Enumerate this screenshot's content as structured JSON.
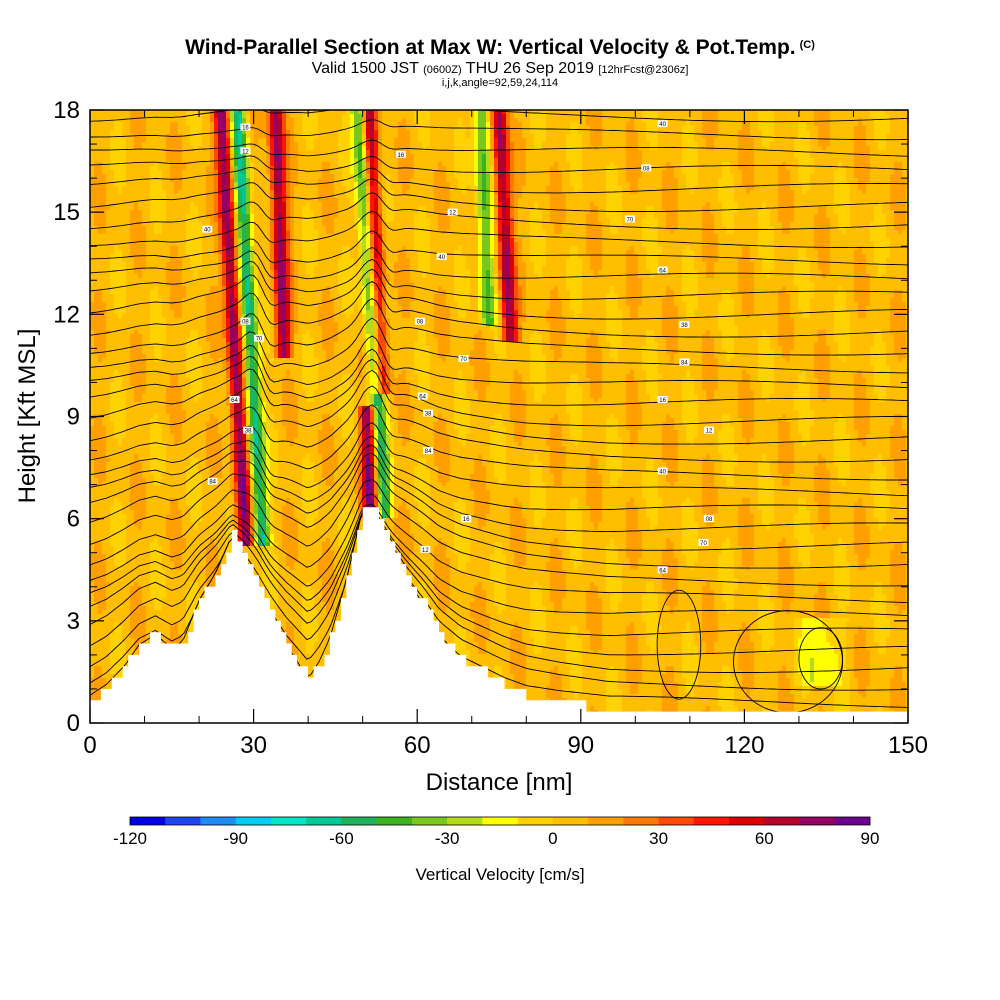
{
  "header": {
    "title": "Wind-Parallel Section at Max W: Vertical Velocity & Pot.Temp.",
    "copyright": "(C)",
    "subtitle_main": "Valid 1500 JST",
    "subtitle_utc": "(0600Z)",
    "subtitle_date": "THU 26 Sep 2019",
    "subtitle_fcst": "[12hrFcst@2306z]",
    "meta": "i,j,k,angle=92,59,24,114"
  },
  "chart_data": {
    "type": "heatmap",
    "title": "Wind-Parallel Section at Max W: Vertical Velocity & Pot.Temp.",
    "xlabel": "Distance [nm]",
    "ylabel": "Height [Kft MSL]",
    "xlim": [
      0,
      150
    ],
    "ylim": [
      0,
      18
    ],
    "x_ticks": [
      "0",
      "30",
      "60",
      "90",
      "120",
      "150"
    ],
    "y_ticks": [
      "0",
      "3",
      "6",
      "9",
      "12",
      "15",
      "18"
    ],
    "x_tick_values": [
      0,
      30,
      60,
      90,
      120,
      150
    ],
    "y_tick_values": [
      0,
      3,
      6,
      9,
      12,
      15,
      18
    ],
    "background_value": 5,
    "updrafts": [
      {
        "x": 28.5,
        "y_base": 5.5,
        "y_top": 18,
        "slope": -0.35,
        "peak": 75
      },
      {
        "x": 35.5,
        "y_base": 11,
        "y_top": 18,
        "slope": -0.2,
        "peak": 70
      },
      {
        "x": 51.5,
        "y_base": 6.3,
        "y_top": 9,
        "slope": -0.2,
        "peak": 75
      },
      {
        "x": 53.5,
        "y_base": 10,
        "y_top": 18,
        "slope": -0.3,
        "peak": 65
      },
      {
        "x": 77,
        "y_base": 11.5,
        "y_top": 18,
        "slope": -0.3,
        "peak": 70
      }
    ],
    "downdrafts": [
      {
        "x": 31.5,
        "y_base": 5.5,
        "y_top": 18,
        "slope": -0.35,
        "peak": -70
      },
      {
        "x": 54,
        "y_base": 6.3,
        "y_top": 18,
        "slope": -0.4,
        "peak": -60
      },
      {
        "x": 73,
        "y_base": 12,
        "y_top": 18,
        "slope": -0.2,
        "peak": -50
      },
      {
        "x": 134,
        "y_base": 1.4,
        "y_top": 2.8,
        "slope": 0,
        "peak": -25
      }
    ],
    "terrain": [
      [
        0,
        0.6
      ],
      [
        3,
        1.0
      ],
      [
        6,
        1.6
      ],
      [
        9,
        2.3
      ],
      [
        12,
        2.6
      ],
      [
        15,
        2.2
      ],
      [
        17,
        2.4
      ],
      [
        20,
        3.6
      ],
      [
        23,
        4.4
      ],
      [
        26,
        5.5
      ],
      [
        28,
        5.0
      ],
      [
        30,
        4.3
      ],
      [
        33,
        3.3
      ],
      [
        36,
        2.3
      ],
      [
        40,
        1.3
      ],
      [
        42,
        1.8
      ],
      [
        44,
        2.5
      ],
      [
        47,
        4.2
      ],
      [
        50,
        6.3
      ],
      [
        52,
        6.3
      ],
      [
        55,
        5.3
      ],
      [
        58,
        4.3
      ],
      [
        61,
        3.5
      ],
      [
        64,
        2.6
      ],
      [
        68,
        1.9
      ],
      [
        72,
        1.5
      ],
      [
        76,
        1.1
      ],
      [
        80,
        0.8
      ],
      [
        86,
        0.6
      ],
      [
        95,
        0.4
      ],
      [
        150,
        0.35
      ]
    ],
    "theta_labels_sample": [
      "16",
      "12",
      "40",
      "08",
      "70",
      "64",
      "38",
      "84"
    ],
    "colorbar": {
      "title": "Vertical Velocity [cm/s]",
      "min": -120,
      "max": 90,
      "step": 10,
      "tick_labels": [
        "-120",
        "-90",
        "-60",
        "-30",
        "0",
        "30",
        "60",
        "90"
      ],
      "tick_values": [
        -120,
        -90,
        -60,
        -30,
        0,
        30,
        60,
        90
      ],
      "colors": [
        "#0000e6",
        "#1e46f0",
        "#1e8cf5",
        "#00cdf5",
        "#00e6c8",
        "#00c896",
        "#1eb45a",
        "#3cb41e",
        "#78c81e",
        "#b4dc1e",
        "#ffff00",
        "#ffd200",
        "#ffbe00",
        "#ffa000",
        "#ff7800",
        "#ff4b00",
        "#ff1400",
        "#dc0000",
        "#b4002d",
        "#960064",
        "#6e0091"
      ]
    }
  }
}
